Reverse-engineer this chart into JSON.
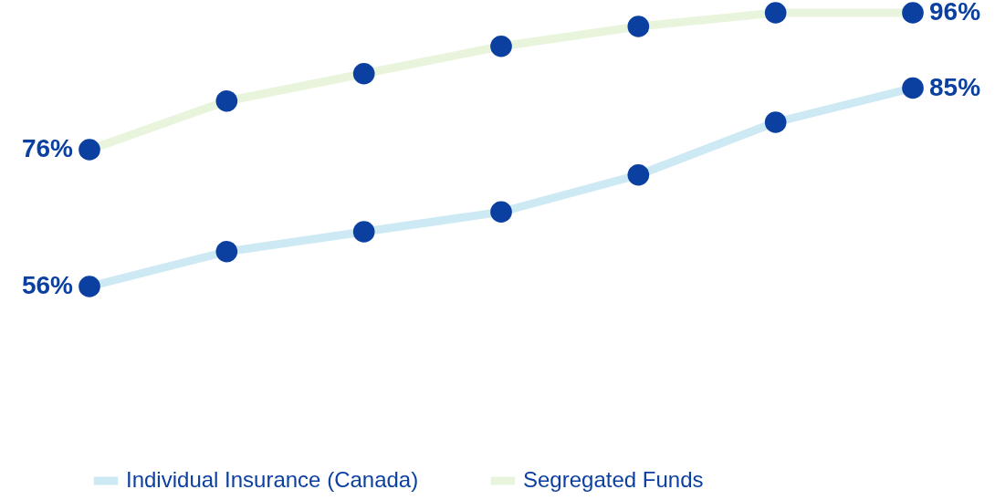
{
  "chart_data": {
    "type": "line",
    "categories": [
      null,
      null,
      null,
      null,
      null,
      null,
      null
    ],
    "marker": "circle",
    "legend": "bottom",
    "series": [
      {
        "name": "Individual Insurance (Canada)",
        "color": "#cde9f4",
        "values": [
          56,
          61.1,
          64,
          66.9,
          72.3,
          80,
          85
        ],
        "value_labels": [
          "56%",
          null,
          null,
          null,
          null,
          null,
          "85%"
        ]
      },
      {
        "name": "Segregated Funds",
        "color": "#e8f4dc",
        "values": [
          76,
          83.1,
          87.1,
          91.1,
          94,
          96,
          96
        ],
        "value_labels": [
          "76%",
          null,
          null,
          null,
          null,
          null,
          "96%"
        ]
      }
    ]
  }
}
